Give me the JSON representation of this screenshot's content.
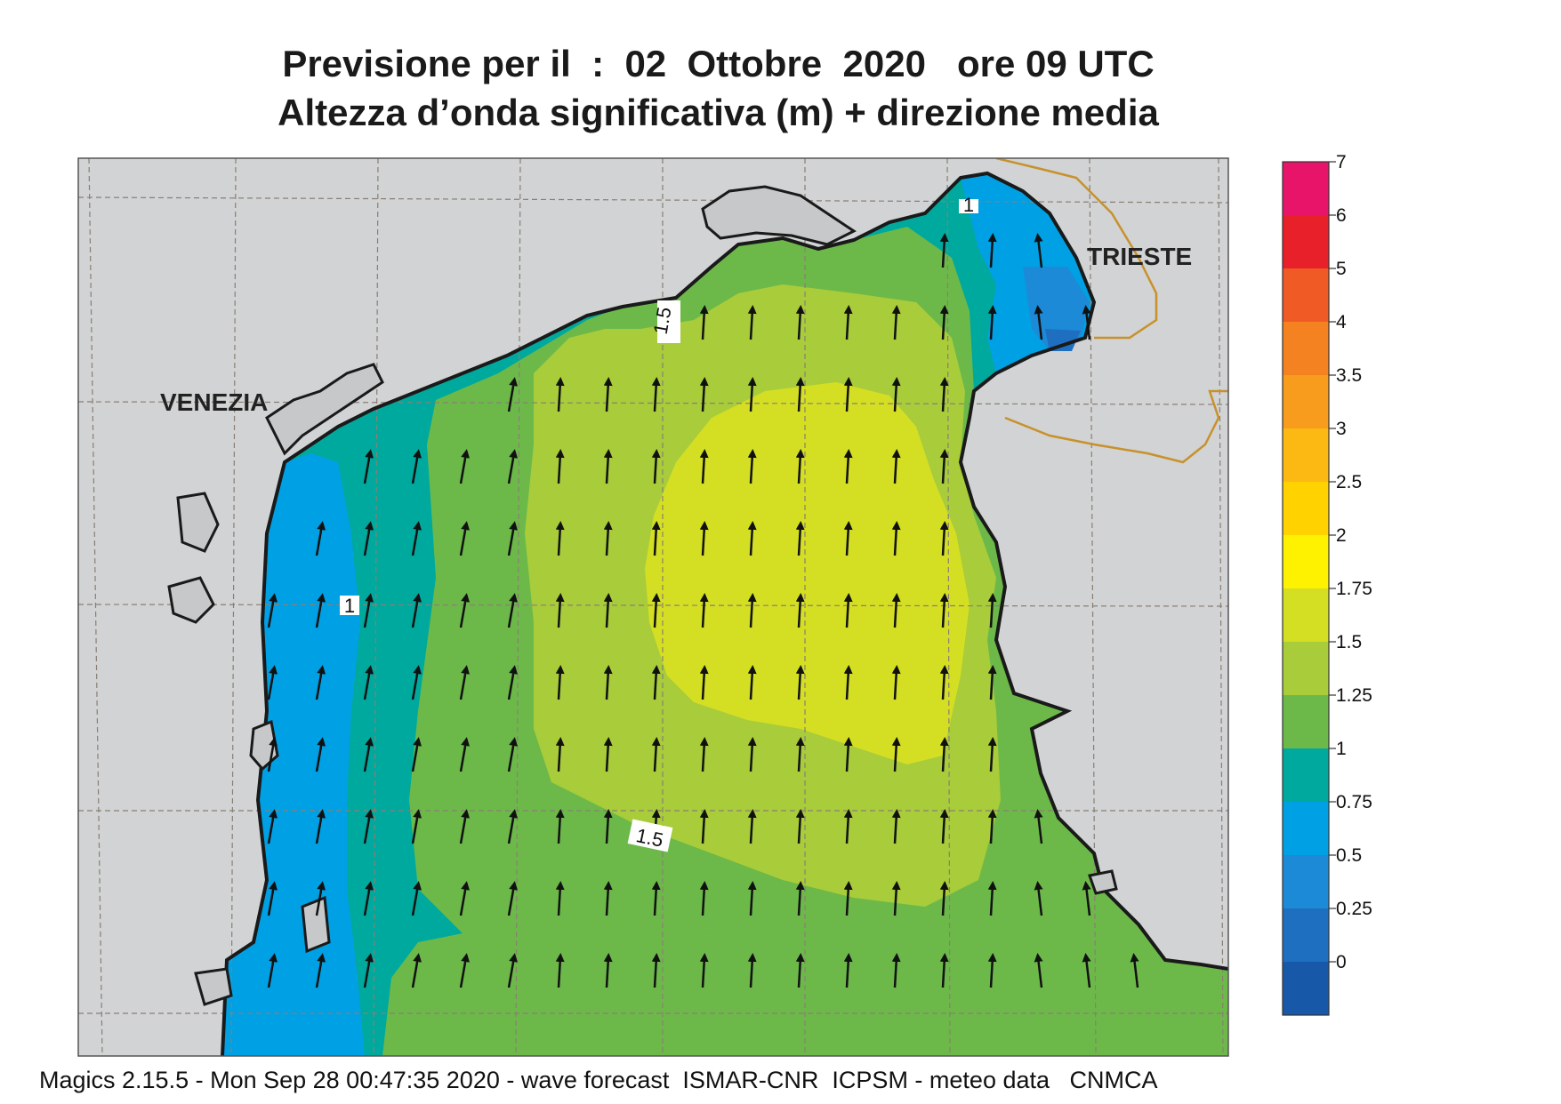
{
  "title": {
    "line1": "Previsione per il  :  02  Ottobre  2020   ore 09 UTC",
    "line2": "Altezza d’onda significativa (m) + direzione media"
  },
  "cities": {
    "venezia": "VENEZIA",
    "trieste": "TRIESTE"
  },
  "contour_labels": [
    "1.5",
    "1",
    "1.5",
    "1"
  ],
  "colorbar": {
    "labels": [
      "7",
      "6",
      "5",
      "4",
      "3.5",
      "3",
      "2.5",
      "2",
      "1.75",
      "1.5",
      "1.25",
      "1",
      "0.75",
      "0.5",
      "0.25",
      "0"
    ],
    "colors": [
      "#e8146a",
      "#e8202a",
      "#f05a24",
      "#f58220",
      "#f79c1c",
      "#fdb913",
      "#ffd200",
      "#fff200",
      "#d4df24",
      "#a8cc3a",
      "#6cb94a",
      "#00a99d",
      "#00a0e4",
      "#1c8ad6",
      "#1f6fc0",
      "#1858a8"
    ]
  },
  "legend_colors": {
    "land": "#d1d3d4",
    "coast": "#1a1a1a",
    "border": "#c8912b",
    "grid": "#8a7f74",
    "arrow": "#111111"
  },
  "footer": "Magics 2.15.5 - Mon Sep 28 00:47:35 2020 - wave forecast  ISMAR-CNR  ICPSM - meteo data   CNMCA"
}
